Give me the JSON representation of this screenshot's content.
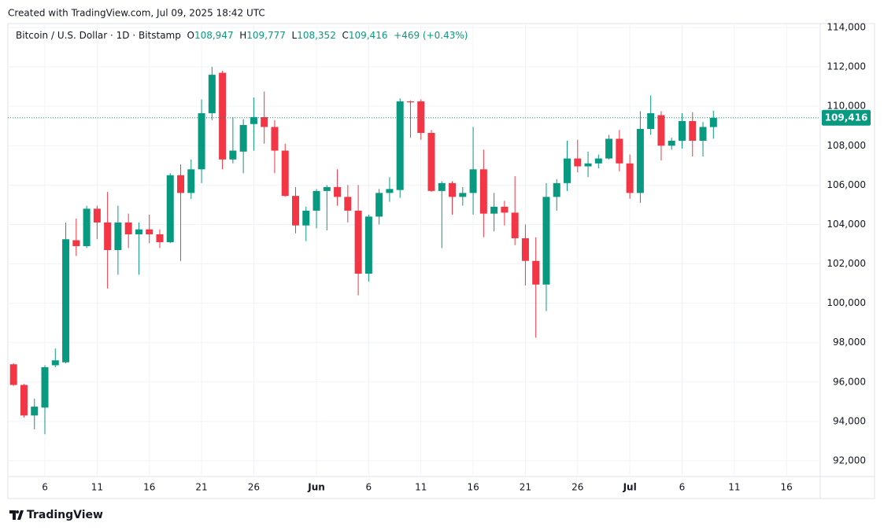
{
  "header": "Created with TradingView.com, Jul 09, 2025 18:42 UTC",
  "footer_logo": "TradingView",
  "chart_data": {
    "type": "candlestick",
    "title": "Bitcoin / U.S. Dollar · 1D · Bitstamp",
    "ohlc_legend": [
      {
        "prefix": "O",
        "value": 108947,
        "label": "108,947"
      },
      {
        "prefix": "H",
        "value": 109777,
        "label": "109,777"
      },
      {
        "prefix": "L",
        "value": 108352,
        "label": "108,352"
      },
      {
        "prefix": "C",
        "value": 109416,
        "label": "109,416"
      }
    ],
    "change": {
      "value": 469,
      "label": "+469"
    },
    "change_pct": {
      "value": 0.43,
      "label": "(+0.43%)"
    },
    "last_price": {
      "value": 109416,
      "label": "109,416"
    },
    "up_color": "#089981",
    "down_color": "#f23645",
    "grid": true,
    "x": [
      "2025-05-03",
      "2025-05-04",
      "2025-05-05",
      "2025-05-06",
      "2025-05-07",
      "2025-05-08",
      "2025-05-09",
      "2025-05-10",
      "2025-05-11",
      "2025-05-12",
      "2025-05-13",
      "2025-05-14",
      "2025-05-15",
      "2025-05-16",
      "2025-05-17",
      "2025-05-18",
      "2025-05-19",
      "2025-05-20",
      "2025-05-21",
      "2025-05-22",
      "2025-05-23",
      "2025-05-24",
      "2025-05-25",
      "2025-05-26",
      "2025-05-27",
      "2025-05-28",
      "2025-05-29",
      "2025-05-30",
      "2025-05-31",
      "2025-06-01",
      "2025-06-02",
      "2025-06-03",
      "2025-06-04",
      "2025-06-05",
      "2025-06-06",
      "2025-06-07",
      "2025-06-08",
      "2025-06-09",
      "2025-06-10",
      "2025-06-11",
      "2025-06-12",
      "2025-06-13",
      "2025-06-14",
      "2025-06-15",
      "2025-06-16",
      "2025-06-17",
      "2025-06-18",
      "2025-06-19",
      "2025-06-20",
      "2025-06-21",
      "2025-06-22",
      "2025-06-23",
      "2025-06-24",
      "2025-06-25",
      "2025-06-26",
      "2025-06-27",
      "2025-06-28",
      "2025-06-29",
      "2025-06-30",
      "2025-07-01",
      "2025-07-02",
      "2025-07-03",
      "2025-07-04",
      "2025-07-05",
      "2025-07-06",
      "2025-07-07",
      "2025-07-08",
      "2025-07-09"
    ],
    "open": [
      96900,
      95850,
      94300,
      94700,
      96850,
      97000,
      103200,
      102900,
      104800,
      104100,
      102700,
      104100,
      103500,
      103750,
      103500,
      103100,
      106500,
      105600,
      106800,
      109650,
      111700,
      107300,
      107700,
      109100,
      109450,
      108950,
      107750,
      105450,
      103950,
      104700,
      105700,
      105900,
      105400,
      104700,
      101500,
      104400,
      105600,
      105750,
      110250,
      110250,
      108650,
      105700,
      106100,
      105400,
      105600,
      106800,
      104550,
      104900,
      104600,
      103300,
      102150,
      100950,
      105400,
      106100,
      107350,
      106950,
      107100,
      107350,
      108350,
      107100,
      105600,
      108850,
      109550,
      108000,
      108250,
      109250,
      108250,
      108947
    ],
    "high": [
      96950,
      95900,
      95150,
      96850,
      97700,
      104100,
      104300,
      104950,
      104950,
      105650,
      104950,
      104550,
      104100,
      104500,
      103750,
      106600,
      107050,
      107300,
      110350,
      112000,
      111800,
      109450,
      109350,
      110450,
      110750,
      109300,
      108100,
      105900,
      104900,
      105800,
      106000,
      106800,
      106000,
      106000,
      104500,
      105800,
      106400,
      110400,
      110300,
      110350,
      108800,
      106200,
      106200,
      105900,
      108950,
      107800,
      105600,
      105200,
      106450,
      104000,
      103350,
      106100,
      106300,
      108250,
      108300,
      107700,
      107550,
      108550,
      108800,
      107550,
      109750,
      110550,
      109750,
      108400,
      109650,
      109700,
      109200,
      109777
    ],
    "low": [
      95800,
      94200,
      93600,
      93350,
      96750,
      96950,
      102400,
      102800,
      103250,
      100750,
      101450,
      102800,
      101450,
      103050,
      102800,
      103050,
      102150,
      105300,
      106100,
      109300,
      106800,
      107100,
      106600,
      107750,
      108100,
      106600,
      105400,
      103550,
      103150,
      103800,
      103700,
      104950,
      104100,
      100400,
      101100,
      104000,
      105150,
      105350,
      108400,
      108300,
      105650,
      102800,
      104500,
      104950,
      104500,
      103350,
      103650,
      103950,
      102950,
      100900,
      98250,
      99600,
      104700,
      105700,
      106650,
      106400,
      106850,
      107300,
      106700,
      105300,
      105100,
      108550,
      107250,
      107800,
      107850,
      107450,
      107450,
      108352
    ],
    "close": [
      95850,
      94300,
      94750,
      96750,
      97100,
      103250,
      102900,
      104800,
      104100,
      102700,
      104100,
      103500,
      103750,
      103500,
      103100,
      106500,
      105600,
      106800,
      109650,
      111600,
      107300,
      107750,
      109050,
      109450,
      108950,
      107750,
      105450,
      103950,
      104700,
      105700,
      105900,
      105400,
      104700,
      101500,
      104400,
      105600,
      105800,
      110250,
      110200,
      108650,
      105700,
      106100,
      105400,
      105600,
      106800,
      104550,
      104900,
      104600,
      103300,
      102150,
      100950,
      105400,
      106100,
      107350,
      106950,
      107100,
      107350,
      108350,
      107100,
      105600,
      108850,
      109650,
      108000,
      108250,
      109250,
      108250,
      108950,
      109416
    ],
    "ylim": [
      91200,
      114200
    ],
    "yticks": [
      {
        "value": 92000,
        "label": "92,000"
      },
      {
        "value": 94000,
        "label": "94,000"
      },
      {
        "value": 96000,
        "label": "96,000"
      },
      {
        "value": 98000,
        "label": "98,000"
      },
      {
        "value": 100000,
        "label": "100,000"
      },
      {
        "value": 102000,
        "label": "102,000"
      },
      {
        "value": 104000,
        "label": "104,000"
      },
      {
        "value": 106000,
        "label": "106,000"
      },
      {
        "value": 108000,
        "label": "108,000"
      },
      {
        "value": 110000,
        "label": "110,000"
      },
      {
        "value": 112000,
        "label": "112,000"
      },
      {
        "value": 114000,
        "label": "114,000"
      }
    ],
    "xticks": [
      {
        "value": "2025-05-06",
        "label": "6"
      },
      {
        "value": "2025-05-11",
        "label": "11"
      },
      {
        "value": "2025-05-16",
        "label": "16"
      },
      {
        "value": "2025-05-21",
        "label": "21"
      },
      {
        "value": "2025-05-26",
        "label": "26"
      },
      {
        "value": "2025-06-01",
        "label": "Jun"
      },
      {
        "value": "2025-06-06",
        "label": "6"
      },
      {
        "value": "2025-06-11",
        "label": "11"
      },
      {
        "value": "2025-06-16",
        "label": "16"
      },
      {
        "value": "2025-06-21",
        "label": "21"
      },
      {
        "value": "2025-06-26",
        "label": "26"
      },
      {
        "value": "2025-07-01",
        "label": "Jul"
      },
      {
        "value": "2025-07-06",
        "label": "6"
      },
      {
        "value": "2025-07-11",
        "label": "11"
      },
      {
        "value": "2025-07-16",
        "label": "16"
      }
    ]
  }
}
